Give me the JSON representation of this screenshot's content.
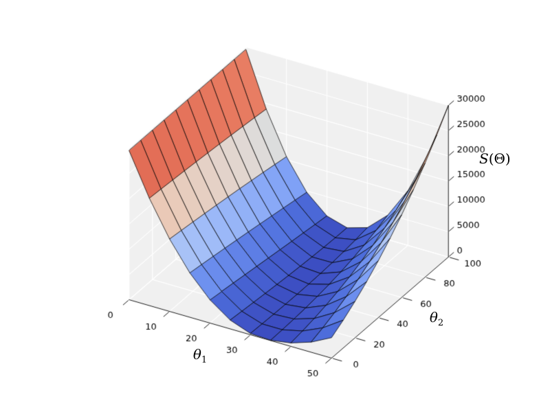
{
  "figure": {
    "background": "#ffffff"
  },
  "chart_data": {
    "type": "surface",
    "title": "",
    "xlabel": "θ_1",
    "ylabel": "θ_2",
    "zlabel": "S(Θ)",
    "xlabel_parts": {
      "base": "θ",
      "sub": "1"
    },
    "ylabel_parts": {
      "base": "θ",
      "sub": "2"
    },
    "zlabel_parts": {
      "s": "S",
      "rest": "(Θ)"
    },
    "x": [
      0,
      5,
      10,
      15,
      20,
      25,
      30,
      35,
      40,
      45,
      50
    ],
    "y": [
      0,
      10,
      20,
      30,
      40,
      50,
      60,
      70,
      80,
      90,
      100
    ],
    "z_rows_by_y": [
      [
        29500,
        21240,
        14330,
        8780,
        4580,
        1730,
        240,
        60,
        690,
        2020,
        4050
      ],
      [
        29500,
        21050,
        14020,
        8420,
        4240,
        1470,
        140,
        140,
        1060,
        2850,
        5510
      ],
      [
        29500,
        20850,
        13700,
        8050,
        3890,
        1230,
        60,
        270,
        1540,
        3850,
        7200
      ],
      [
        29500,
        20650,
        13370,
        7670,
        3540,
        990,
        10,
        470,
        2140,
        5020,
        9110
      ],
      [
        29500,
        20430,
        13020,
        7270,
        3190,
        770,
        0,
        750,
        2870,
        6380,
        11260
      ],
      [
        29500,
        20200,
        12660,
        6880,
        2840,
        560,
        30,
        1120,
        3750,
        7940,
        13670
      ],
      [
        29500,
        19970,
        12290,
        6460,
        2490,
        380,
        110,
        1590,
        4790,
        9710,
        16350
      ],
      [
        29500,
        19720,
        11890,
        6040,
        2150,
        230,
        260,
        2180,
        6000,
        11710,
        19310
      ],
      [
        29500,
        19450,
        11490,
        5610,
        1820,
        110,
        480,
        2910,
        7400,
        13950,
        22560
      ],
      [
        29500,
        19180,
        11060,
        5170,
        1490,
        30,
        790,
        3780,
        8990,
        16440,
        26120
      ],
      [
        29500,
        18880,
        10620,
        4720,
        1180,
        0,
        1200,
        4800,
        10800,
        19200,
        30000
      ]
    ],
    "xticks": [
      0,
      10,
      20,
      30,
      40,
      50
    ],
    "yticks": [
      0,
      20,
      40,
      60,
      80,
      100
    ],
    "zticks": [
      0,
      5000,
      10000,
      15000,
      20000,
      25000,
      30000
    ],
    "xlim": [
      0,
      50
    ],
    "ylim": [
      0,
      100
    ],
    "zlim": [
      0,
      30000
    ],
    "view": {
      "azim": -60,
      "elev": 30
    },
    "legend": "none",
    "grid": true,
    "colormap": "coolwarm",
    "colormap_stops": [
      "#3B4CC0",
      "#4E6EDC",
      "#7A9DF6",
      "#A6C1F8",
      "#DDDDDD",
      "#EFC1A7",
      "#F29979",
      "#DD5E4A",
      "#B40426"
    ],
    "colors": {
      "pane": "#f0f0f0",
      "grid_line": "#ffffff",
      "spine": "#1a1a1a",
      "facet_edge": "#000000",
      "tick_label": "#000000",
      "background": "#ffffff"
    }
  }
}
